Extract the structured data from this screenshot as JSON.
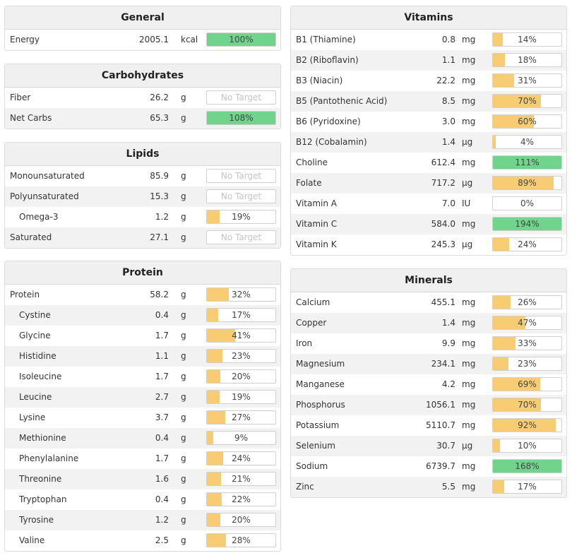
{
  "colors": {
    "under": "#f8cc72",
    "over": "#70d48c"
  },
  "general": {
    "title": "General",
    "rows": [
      {
        "name": "Energy",
        "amount": "2005.1",
        "unit": "kcal",
        "pct": 100,
        "label": "100%"
      }
    ]
  },
  "carbohydrates": {
    "title": "Carbohydrates",
    "rows": [
      {
        "name": "Fiber",
        "amount": "26.2",
        "unit": "g",
        "pct": null,
        "label": "No Target"
      },
      {
        "name": "Net Carbs",
        "amount": "65.3",
        "unit": "g",
        "pct": 108,
        "label": "108%"
      }
    ]
  },
  "lipids": {
    "title": "Lipids",
    "rows": [
      {
        "name": "Monounsaturated",
        "amount": "85.9",
        "unit": "g",
        "pct": null,
        "label": "No Target"
      },
      {
        "name": "Polyunsaturated",
        "amount": "15.3",
        "unit": "g",
        "pct": null,
        "label": "No Target"
      },
      {
        "name": "Omega-3",
        "amount": "1.2",
        "unit": "g",
        "pct": 19,
        "label": "19%",
        "sub": true
      },
      {
        "name": "Saturated",
        "amount": "27.1",
        "unit": "g",
        "pct": null,
        "label": "No Target"
      }
    ]
  },
  "protein": {
    "title": "Protein",
    "rows": [
      {
        "name": "Protein",
        "amount": "58.2",
        "unit": "g",
        "pct": 32,
        "label": "32%"
      },
      {
        "name": "Cystine",
        "amount": "0.4",
        "unit": "g",
        "pct": 17,
        "label": "17%",
        "sub": true
      },
      {
        "name": "Glycine",
        "amount": "1.7",
        "unit": "g",
        "pct": 41,
        "label": "41%",
        "sub": true
      },
      {
        "name": "Histidine",
        "amount": "1.1",
        "unit": "g",
        "pct": 23,
        "label": "23%",
        "sub": true
      },
      {
        "name": "Isoleucine",
        "amount": "1.7",
        "unit": "g",
        "pct": 20,
        "label": "20%",
        "sub": true
      },
      {
        "name": "Leucine",
        "amount": "2.7",
        "unit": "g",
        "pct": 19,
        "label": "19%",
        "sub": true
      },
      {
        "name": "Lysine",
        "amount": "3.7",
        "unit": "g",
        "pct": 27,
        "label": "27%",
        "sub": true
      },
      {
        "name": "Methionine",
        "amount": "0.4",
        "unit": "g",
        "pct": 9,
        "label": "9%",
        "sub": true
      },
      {
        "name": "Phenylalanine",
        "amount": "1.7",
        "unit": "g",
        "pct": 24,
        "label": "24%",
        "sub": true
      },
      {
        "name": "Threonine",
        "amount": "1.6",
        "unit": "g",
        "pct": 21,
        "label": "21%",
        "sub": true
      },
      {
        "name": "Tryptophan",
        "amount": "0.4",
        "unit": "g",
        "pct": 22,
        "label": "22%",
        "sub": true
      },
      {
        "name": "Tyrosine",
        "amount": "1.2",
        "unit": "g",
        "pct": 20,
        "label": "20%",
        "sub": true
      },
      {
        "name": "Valine",
        "amount": "2.5",
        "unit": "g",
        "pct": 28,
        "label": "28%",
        "sub": true
      }
    ]
  },
  "vitamins": {
    "title": "Vitamins",
    "rows": [
      {
        "name": "B1 (Thiamine)",
        "amount": "0.8",
        "unit": "mg",
        "pct": 14,
        "label": "14%"
      },
      {
        "name": "B2 (Riboflavin)",
        "amount": "1.1",
        "unit": "mg",
        "pct": 18,
        "label": "18%"
      },
      {
        "name": "B3 (Niacin)",
        "amount": "22.2",
        "unit": "mg",
        "pct": 31,
        "label": "31%"
      },
      {
        "name": "B5 (Pantothenic Acid)",
        "amount": "8.5",
        "unit": "mg",
        "pct": 70,
        "label": "70%"
      },
      {
        "name": "B6 (Pyridoxine)",
        "amount": "3.0",
        "unit": "mg",
        "pct": 60,
        "label": "60%"
      },
      {
        "name": "B12 (Cobalamin)",
        "amount": "1.4",
        "unit": "µg",
        "pct": 4,
        "label": "4%"
      },
      {
        "name": "Choline",
        "amount": "612.4",
        "unit": "mg",
        "pct": 111,
        "label": "111%"
      },
      {
        "name": "Folate",
        "amount": "717.2",
        "unit": "µg",
        "pct": 89,
        "label": "89%"
      },
      {
        "name": "Vitamin A",
        "amount": "7.0",
        "unit": "IU",
        "pct": 0,
        "label": "0%"
      },
      {
        "name": "Vitamin C",
        "amount": "584.0",
        "unit": "mg",
        "pct": 194,
        "label": "194%"
      },
      {
        "name": "Vitamin K",
        "amount": "245.3",
        "unit": "µg",
        "pct": 24,
        "label": "24%"
      }
    ]
  },
  "minerals": {
    "title": "Minerals",
    "rows": [
      {
        "name": "Calcium",
        "amount": "455.1",
        "unit": "mg",
        "pct": 26,
        "label": "26%"
      },
      {
        "name": "Copper",
        "amount": "1.4",
        "unit": "mg",
        "pct": 47,
        "label": "47%"
      },
      {
        "name": "Iron",
        "amount": "9.9",
        "unit": "mg",
        "pct": 33,
        "label": "33%"
      },
      {
        "name": "Magnesium",
        "amount": "234.1",
        "unit": "mg",
        "pct": 23,
        "label": "23%"
      },
      {
        "name": "Manganese",
        "amount": "4.2",
        "unit": "mg",
        "pct": 69,
        "label": "69%"
      },
      {
        "name": "Phosphorus",
        "amount": "1056.1",
        "unit": "mg",
        "pct": 70,
        "label": "70%"
      },
      {
        "name": "Potassium",
        "amount": "5110.7",
        "unit": "mg",
        "pct": 92,
        "label": "92%"
      },
      {
        "name": "Selenium",
        "amount": "30.7",
        "unit": "µg",
        "pct": 10,
        "label": "10%"
      },
      {
        "name": "Sodium",
        "amount": "6739.7",
        "unit": "mg",
        "pct": 168,
        "label": "168%"
      },
      {
        "name": "Zinc",
        "amount": "5.5",
        "unit": "mg",
        "pct": 17,
        "label": "17%"
      }
    ]
  }
}
